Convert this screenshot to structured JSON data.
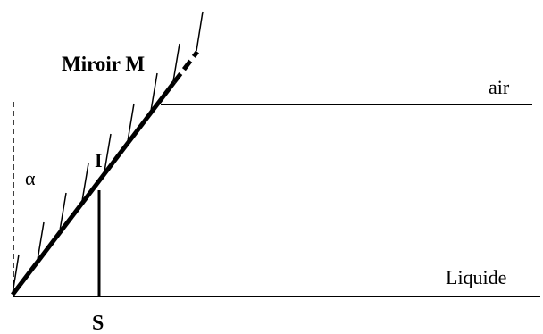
{
  "labels": {
    "mirror": "Miroir M",
    "air": "air",
    "liquid": "Liquide",
    "angle": "α",
    "point_i": "I",
    "point_s": "S"
  },
  "colors": {
    "ink": "#000000",
    "background": "#ffffff"
  }
}
